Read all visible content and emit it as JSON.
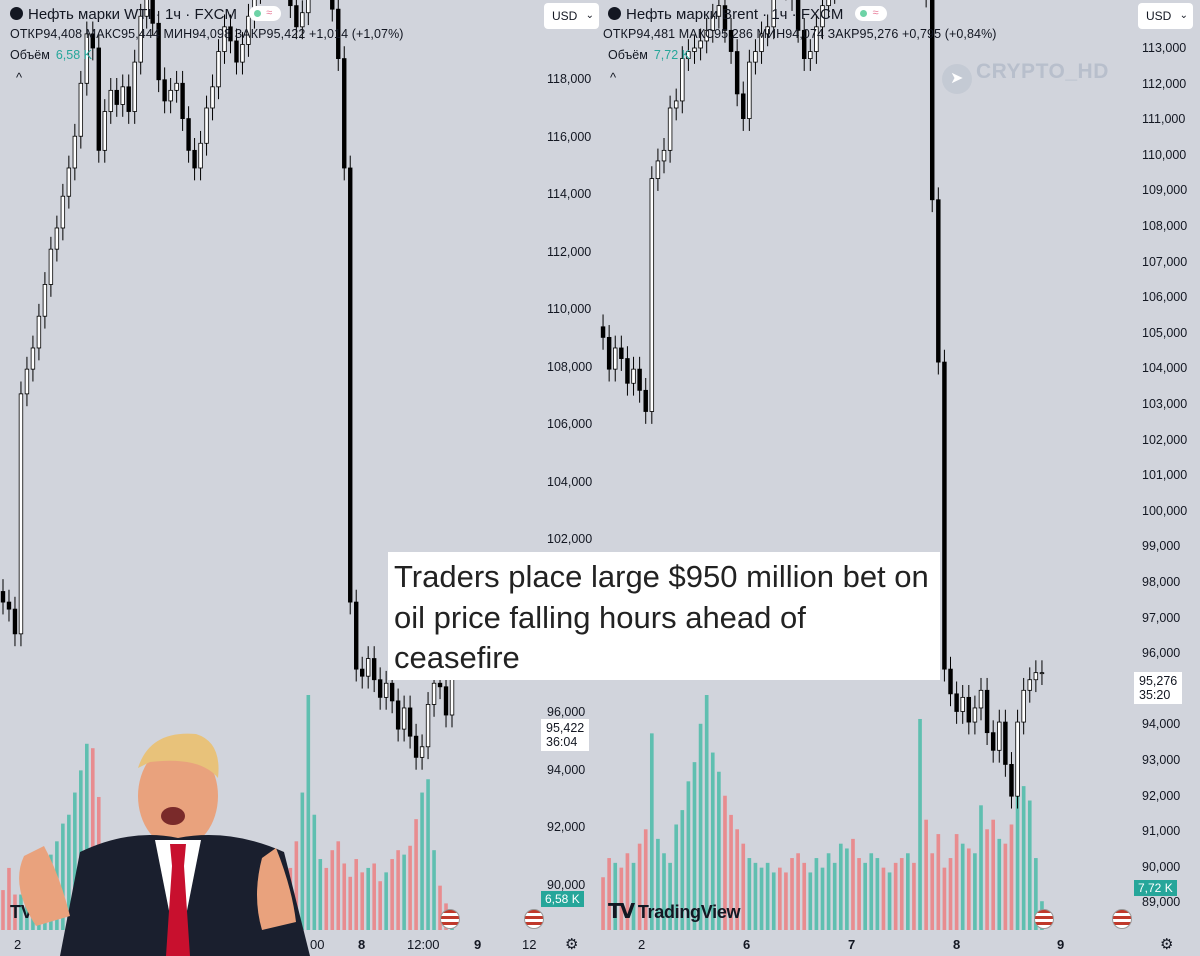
{
  "left_chart": {
    "title": "Нефть марки WTI · 1ч · FXCM",
    "ohlc": "ОТКР94,408  МАКС95,444  МИН94,098  ЗАКР95,422  +1,014 (+1,07%)",
    "volume_label": "Объём",
    "volume_value": "6,58 K",
    "price_label": "95,422",
    "countdown": "36:04",
    "volume_badge": "6,58 K",
    "x_ticks": [
      "2",
      "00",
      "8",
      "12:00",
      "9",
      "12"
    ]
  },
  "right_chart": {
    "title": "Нефть марки Brent · 1ч · FXCM",
    "ohlc": "ОТКР94,481  МАКС95,286  МИН94,074  ЗАКР95,276  +0,795 (+0,84%)",
    "volume_label": "Объём",
    "volume_value": "7,72 K",
    "currency": "USD",
    "price_label": "95,276",
    "countdown": "35:20",
    "volume_badge": "7,72 K",
    "x_ticks": [
      "2",
      "6",
      "7",
      "8",
      "9"
    ]
  },
  "middle_axis_ticks": [
    "118,000",
    "116,000",
    "114,000",
    "112,000",
    "110,000",
    "108,000",
    "106,000",
    "104,000",
    "102,000",
    "96,000",
    "94,000",
    "92,000",
    "90,000"
  ],
  "right_axis_ticks": [
    "113,000",
    "112,000",
    "111,000",
    "110,000",
    "109,000",
    "108,000",
    "107,000",
    "106,000",
    "105,000",
    "104,000",
    "103,000",
    "102,000",
    "101,000",
    "100,000",
    "99,000",
    "98,000",
    "97,000",
    "96,000",
    "95,000",
    "94,000",
    "93,000",
    "92,000",
    "91,000",
    "90,000",
    "89,000"
  ],
  "currency_left": "USD",
  "watermark": "CRYPTO_HD",
  "tradingview_label": "TradingView",
  "headline": "Traders place large $950 million bet on oil price falling hours ahead of ceasefire",
  "colors": {
    "up_volume": "#5fbfb0",
    "down_volume": "#e88c8f",
    "candle_down": "#000000",
    "candle_up": "#ffffff",
    "accent_green": "#26a69a"
  },
  "chart_data": [
    {
      "type": "candlestick",
      "name": "WTI",
      "ylim": [
        89.0,
        113.0
      ],
      "closes": [
        97.3,
        97.1,
        96.4,
        103.2,
        103.9,
        104.5,
        105.4,
        106.3,
        107.3,
        107.9,
        108.8,
        109.6,
        110.5,
        112.0,
        113.4,
        113.0,
        110.1,
        111.2,
        111.8,
        111.4,
        111.9,
        111.2,
        112.6,
        113.9,
        114.8,
        113.7,
        112.1,
        111.5,
        111.8,
        112.0,
        111.0,
        110.1,
        109.6,
        110.3,
        111.3,
        111.9,
        112.9,
        113.6,
        113.2,
        112.6,
        113.1,
        113.9,
        114.6,
        115.2,
        115.8,
        115.4,
        114.9,
        115.3,
        114.2,
        113.6,
        114.0,
        115.2,
        116.4,
        116.8,
        114.9,
        114.1,
        112.7,
        109.6,
        97.3,
        95.4,
        95.2,
        95.7,
        95.1,
        94.6,
        95.0,
        94.5,
        93.7,
        94.3,
        93.5,
        92.9,
        93.2,
        94.4,
        95.0,
        94.9,
        94.1,
        95.4
      ],
      "volumes": [
        0.9,
        1.4,
        0.8,
        0.8,
        0.6,
        1.0,
        1.1,
        1.3,
        1.7,
        2.0,
        2.4,
        2.6,
        3.1,
        3.6,
        4.2,
        4.1,
        3.0,
        1.8,
        1.4,
        1.2,
        1.7,
        1.5,
        0.8,
        1.1,
        1.4,
        1.6,
        1.3,
        1.1,
        0.9,
        1.0,
        1.2,
        1.4,
        1.3,
        1.2,
        1.1,
        1.0,
        0.9,
        1.1,
        1.2,
        1.3,
        1.0,
        1.1,
        1.0,
        1.2,
        1.3,
        1.4,
        1.1,
        1.2,
        1.4,
        2.0,
        3.1,
        5.3,
        2.6,
        1.6,
        1.4,
        1.8,
        2.0,
        1.5,
        1.2,
        1.6,
        1.3,
        1.4,
        1.5,
        1.1,
        1.3,
        1.6,
        1.8,
        1.7,
        1.9,
        2.5,
        3.1,
        3.4,
        1.8,
        1.0,
        0.6,
        0.4
      ]
    },
    {
      "type": "candlestick",
      "name": "Brent",
      "ylim": [
        89.0,
        113.0
      ],
      "closes": [
        104.8,
        103.9,
        104.5,
        104.2,
        103.5,
        103.9,
        103.3,
        102.7,
        109.3,
        109.8,
        110.1,
        111.3,
        111.5,
        112.7,
        112.9,
        113.0,
        113.2,
        113.5,
        113.9,
        114.2,
        113.5,
        112.9,
        111.7,
        111.0,
        112.6,
        112.9,
        113.4,
        113.6,
        116.2,
        115.4,
        114.7,
        114.4,
        113.5,
        112.7,
        112.9,
        113.6,
        114.2,
        114.6,
        114.9,
        115.4,
        116.7,
        116.3,
        115.4,
        115.9,
        116.5,
        117.4,
        117.2,
        117.3,
        116.1,
        115.7,
        116.2,
        115.4,
        116.9,
        114.5,
        108.7,
        104.1,
        95.4,
        94.7,
        94.2,
        94.6,
        93.9,
        94.3,
        94.8,
        93.6,
        93.1,
        93.9,
        92.7,
        91.8,
        93.9,
        94.8,
        95.1,
        95.3,
        95.3
      ],
      "volumes": [
        1.1,
        1.5,
        1.4,
        1.3,
        1.6,
        1.4,
        1.8,
        2.1,
        4.1,
        1.9,
        1.6,
        1.4,
        2.2,
        2.5,
        3.1,
        3.5,
        4.3,
        4.9,
        3.7,
        3.3,
        2.8,
        2.4,
        2.1,
        1.8,
        1.5,
        1.4,
        1.3,
        1.4,
        1.2,
        1.3,
        1.2,
        1.5,
        1.6,
        1.4,
        1.2,
        1.5,
        1.3,
        1.6,
        1.4,
        1.8,
        1.7,
        1.9,
        1.5,
        1.4,
        1.6,
        1.5,
        1.3,
        1.2,
        1.4,
        1.5,
        1.6,
        1.4,
        4.4,
        2.3,
        1.6,
        2.0,
        1.3,
        1.5,
        2.0,
        1.8,
        1.7,
        1.6,
        2.6,
        2.1,
        2.3,
        1.9,
        1.8,
        2.2,
        3.1,
        3.0,
        2.7,
        1.5,
        0.6
      ]
    }
  ]
}
